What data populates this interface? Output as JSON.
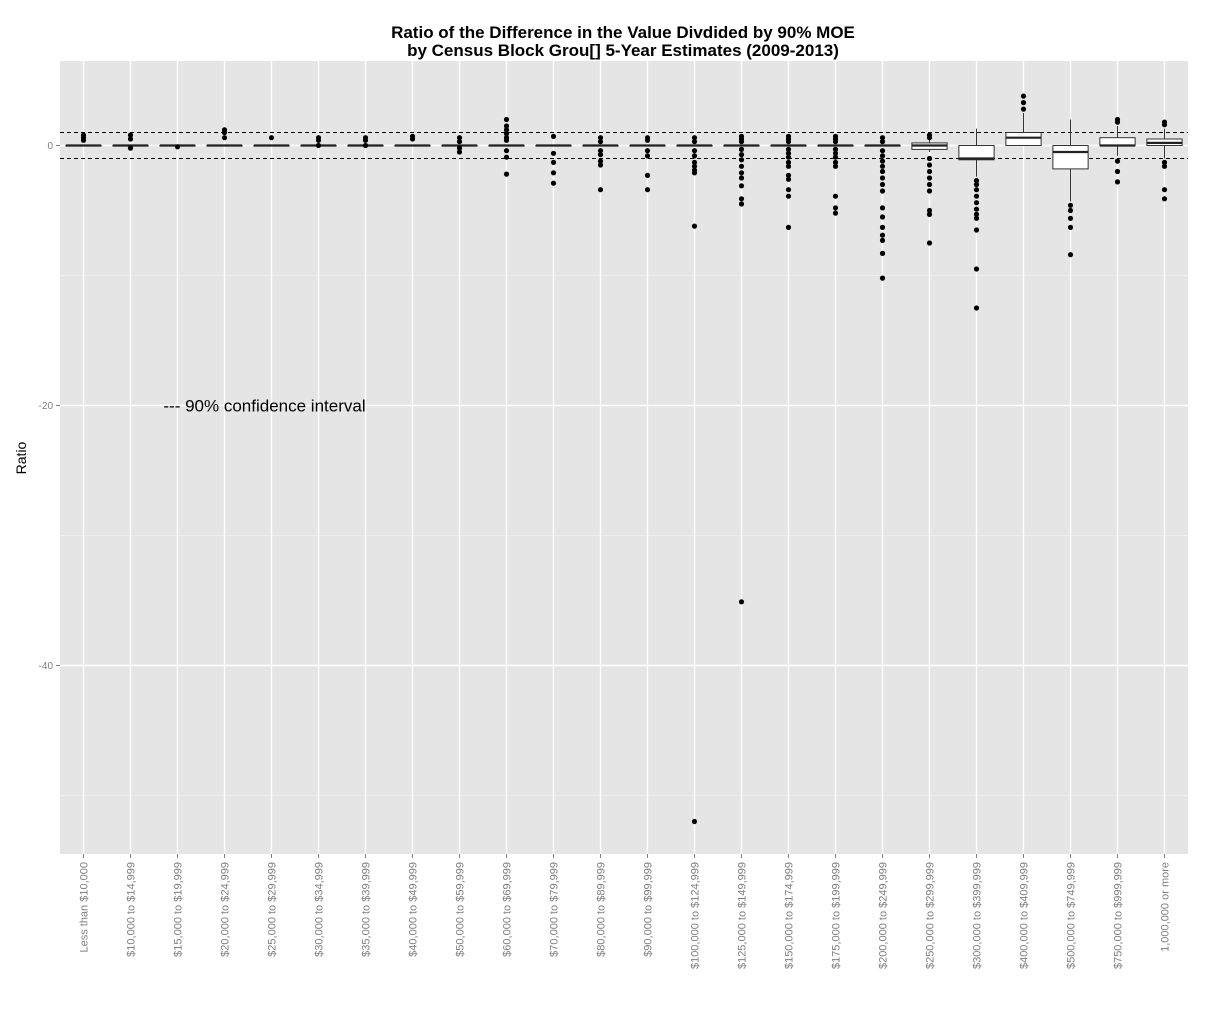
{
  "chart_data": {
    "type": "box",
    "title_line1": "Ratio of the Difference in the Value Divdided by 90% MOE",
    "title_line2": "by Census Block Grou[] 5-Year Estimates (2009-2013)",
    "xlabel": "",
    "ylabel": "Ratio",
    "ylim": [
      -54.5,
      6.5
    ],
    "yticks": [
      0,
      -20,
      -40
    ],
    "ytick_labels": [
      "0",
      "-20",
      "-40"
    ],
    "reference_lines": [
      1,
      -1
    ],
    "annotation": "--- 90% confidence interval",
    "annotation_position": {
      "x_category": 2.2,
      "y": -20
    },
    "grid": true,
    "panel_color": "#e5e5e5",
    "grid_color": "#ffffff",
    "categories": [
      "Less than $10,000",
      "$10,000 to $14,999",
      "$15,000 to $19,999",
      "$20,000 to $24,999",
      "$25,000 to $29,999",
      "$30,000 to $34,999",
      "$35,000 to $39,999",
      "$40,000 to $49,999",
      "$50,000 to $59,999",
      "$60,000 to $69,999",
      "$70,000 to $79,999",
      "$80,000 to $89,999",
      "$90,000 to $99,999",
      "$100,000 to $124,999",
      "$125,000 to $149,999",
      "$150,000 to $174,999",
      "$175,000 to $199,999",
      "$200,000 to $249,999",
      "$250,000 to $299,999",
      "$300,000 to $399,999",
      "$400,000 to $409,999",
      "$500,000 to $749,999",
      "$750,000 to $999,999",
      "1,000,000 or more"
    ],
    "boxes": [
      {
        "q1": 0,
        "median": 0,
        "q3": 0,
        "whisker_low": 0,
        "whisker_high": 0,
        "outliers": [
          0.4,
          0.6,
          0.8
        ]
      },
      {
        "q1": 0,
        "median": 0,
        "q3": 0,
        "whisker_low": 0,
        "whisker_high": 0,
        "outliers": [
          0.5,
          0.8,
          -0.2
        ]
      },
      {
        "q1": 0,
        "median": 0,
        "q3": 0,
        "whisker_low": 0,
        "whisker_high": 0,
        "outliers": [
          -0.1
        ]
      },
      {
        "q1": 0,
        "median": 0,
        "q3": 0,
        "whisker_low": 0,
        "whisker_high": 0,
        "outliers": [
          0.6,
          1.0,
          1.2
        ]
      },
      {
        "q1": 0,
        "median": 0,
        "q3": 0,
        "whisker_low": 0,
        "whisker_high": 0,
        "outliers": [
          0.6
        ]
      },
      {
        "q1": 0,
        "median": 0,
        "q3": 0,
        "whisker_low": 0,
        "whisker_high": 0,
        "outliers": [
          0.6,
          0.4,
          0
        ]
      },
      {
        "q1": 0,
        "median": 0,
        "q3": 0,
        "whisker_low": 0,
        "whisker_high": 0,
        "outliers": [
          0.6,
          0.4,
          0
        ]
      },
      {
        "q1": 0,
        "median": 0,
        "q3": 0,
        "whisker_low": 0,
        "whisker_high": 0,
        "outliers": [
          0.7,
          0.5
        ]
      },
      {
        "q1": 0,
        "median": 0,
        "q3": 0,
        "whisker_low": 0,
        "whisker_high": 0,
        "outliers": [
          0.6,
          0.3,
          -0.2,
          -0.5
        ]
      },
      {
        "q1": 0,
        "median": 0,
        "q3": 0,
        "whisker_low": 0,
        "whisker_high": 0,
        "outliers": [
          2.0,
          1.5,
          1.2,
          0.9,
          0.6,
          0.4,
          -0.4,
          -0.9,
          -2.2
        ]
      },
      {
        "q1": 0,
        "median": 0,
        "q3": 0,
        "whisker_low": 0,
        "whisker_high": 0,
        "outliers": [
          0.7,
          -0.6,
          -1.3,
          -2.1,
          -2.9
        ]
      },
      {
        "q1": 0,
        "median": 0,
        "q3": 0,
        "whisker_low": 0,
        "whisker_high": 0,
        "outliers": [
          0.6,
          0.3,
          -0.4,
          -0.7,
          -1.2,
          -1.5,
          -3.4
        ]
      },
      {
        "q1": 0,
        "median": 0,
        "q3": 0,
        "whisker_low": 0,
        "whisker_high": 0,
        "outliers": [
          0.6,
          0.4,
          -0.4,
          -0.8,
          -2.3,
          -3.4
        ]
      },
      {
        "q1": 0,
        "median": 0,
        "q3": 0,
        "whisker_low": 0,
        "whisker_high": 0,
        "outliers": [
          0.6,
          0.3,
          -0.4,
          -0.8,
          -1.3,
          -1.6,
          -1.9,
          -2.1,
          -6.2,
          -52.0
        ]
      },
      {
        "q1": 0,
        "median": 0,
        "q3": 0,
        "whisker_low": 0,
        "whisker_high": 0,
        "outliers": [
          0.7,
          0.5,
          0.3,
          -0.3,
          -0.7,
          -1.1,
          -1.6,
          -2.1,
          -2.5,
          -3.1,
          -4.1,
          -4.5,
          -35.1
        ]
      },
      {
        "q1": 0,
        "median": 0,
        "q3": 0,
        "whisker_low": 0,
        "whisker_high": 0,
        "outliers": [
          0.7,
          0.5,
          0.3,
          -0.3,
          -0.6,
          -0.9,
          -1.3,
          -1.6,
          -2.3,
          -2.6,
          -3.4,
          -3.9,
          -6.3
        ]
      },
      {
        "q1": 0,
        "median": 0,
        "q3": 0,
        "whisker_low": 0,
        "whisker_high": 0,
        "outliers": [
          0.7,
          0.5,
          0.3,
          -0.3,
          -0.6,
          -0.9,
          -1.3,
          -1.6,
          -3.9,
          -4.8,
          -5.2
        ]
      },
      {
        "q1": 0,
        "median": 0,
        "q3": 0,
        "whisker_low": 0,
        "whisker_high": 0,
        "outliers": [
          0.6,
          0.3,
          -0.4,
          -0.8,
          -1.2,
          -1.6,
          -2.0,
          -2.5,
          -3.0,
          -3.5,
          -4.8,
          -5.5,
          -6.3,
          -6.9,
          -7.3,
          -8.3,
          -10.2
        ]
      },
      {
        "q1": -0.3,
        "median": 0,
        "q3": 0.2,
        "whisker_low": -0.5,
        "whisker_high": 0.5,
        "outliers": [
          0.8,
          0.6,
          -1.0,
          -1.5,
          -2.0,
          -2.5,
          -3.0,
          -3.5,
          -5.0,
          -5.3,
          -7.5
        ]
      },
      {
        "q1": -1.1,
        "median": -1.0,
        "q3": 0,
        "whisker_low": -2.4,
        "whisker_high": 1.3,
        "outliers": [
          -2.7,
          -3.0,
          -3.4,
          -3.9,
          -4.4,
          -4.9,
          -5.3,
          -5.6,
          -6.5,
          -9.5,
          -12.5
        ]
      },
      {
        "q1": 0,
        "median": 0.6,
        "q3": 1.0,
        "whisker_low": 0,
        "whisker_high": 2.5,
        "outliers": [
          2.8,
          3.3,
          3.8
        ]
      },
      {
        "q1": -1.8,
        "median": -0.5,
        "q3": 0,
        "whisker_low": -4.3,
        "whisker_high": 2.0,
        "outliers": [
          -4.6,
          -5.0,
          -5.6,
          -6.3,
          -8.4
        ]
      },
      {
        "q1": 0,
        "median": 0,
        "q3": 0.6,
        "whisker_low": -0.8,
        "whisker_high": 1.5,
        "outliers": [
          1.8,
          2.0,
          -1.2,
          -2.0,
          -2.8
        ]
      },
      {
        "q1": 0,
        "median": 0.2,
        "q3": 0.5,
        "whisker_low": -1.0,
        "whisker_high": 1.3,
        "outliers": [
          1.6,
          1.8,
          -1.3,
          -1.6,
          -3.4,
          -4.1
        ]
      }
    ]
  }
}
